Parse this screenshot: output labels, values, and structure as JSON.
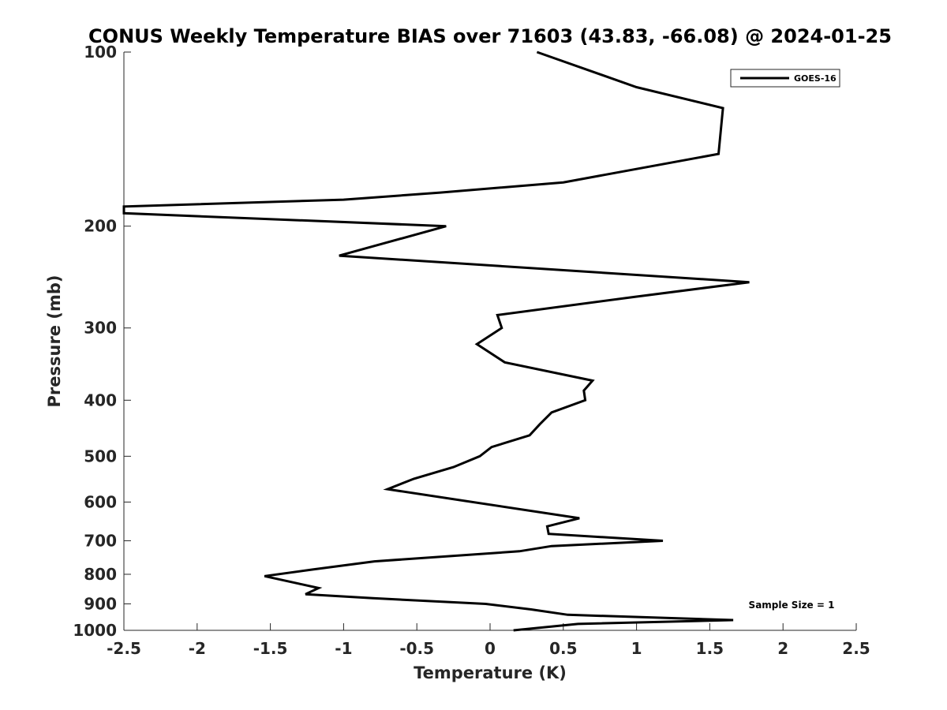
{
  "chart_data": {
    "type": "line",
    "title": "CONUS Weekly Temperature BIAS over 71603 (43.83, -66.08) @ 2024-01-25",
    "xlabel": "Temperature (K)",
    "ylabel": "Pressure (mb)",
    "xlim": [
      -2.5,
      2.5
    ],
    "ylim": [
      100,
      1000
    ],
    "y_scale": "log",
    "y_reversed": true,
    "x_ticks": [
      -2.5,
      -2,
      -1.5,
      -1,
      -0.5,
      0,
      0.5,
      1,
      1.5,
      2,
      2.5
    ],
    "x_tick_labels": [
      "-2.5",
      "-2",
      "-1.5",
      "-1",
      "-0.5",
      "0",
      "0.5",
      "1",
      "1.5",
      "2",
      "2.5"
    ],
    "y_ticks": [
      100,
      200,
      300,
      400,
      500,
      600,
      700,
      800,
      900,
      1000
    ],
    "y_tick_labels": [
      "100",
      "200",
      "300",
      "400",
      "500",
      "600",
      "700",
      "800",
      "900",
      "1000"
    ],
    "grid": false,
    "legend_position": "top-right",
    "series": [
      {
        "name": "GOES-16",
        "color": "#000000",
        "points": [
          {
            "x": 0.32,
            "y": 100
          },
          {
            "x": 1.0,
            "y": 115
          },
          {
            "x": 1.59,
            "y": 125
          },
          {
            "x": 1.56,
            "y": 150
          },
          {
            "x": 0.5,
            "y": 168
          },
          {
            "x": -0.34,
            "y": 175
          },
          {
            "x": -1.0,
            "y": 180
          },
          {
            "x": -2.5,
            "y": 185
          },
          {
            "x": -2.5,
            "y": 190
          },
          {
            "x": -0.3,
            "y": 200
          },
          {
            "x": -1.03,
            "y": 225
          },
          {
            "x": 1.77,
            "y": 250
          },
          {
            "x": 0.99,
            "y": 265
          },
          {
            "x": 0.05,
            "y": 285
          },
          {
            "x": 0.08,
            "y": 300
          },
          {
            "x": -0.09,
            "y": 320
          },
          {
            "x": 0.1,
            "y": 344
          },
          {
            "x": 0.7,
            "y": 370
          },
          {
            "x": 0.64,
            "y": 385
          },
          {
            "x": 0.65,
            "y": 400
          },
          {
            "x": 0.42,
            "y": 420
          },
          {
            "x": 0.34,
            "y": 440
          },
          {
            "x": 0.27,
            "y": 460
          },
          {
            "x": 0.01,
            "y": 482
          },
          {
            "x": -0.07,
            "y": 500
          },
          {
            "x": -0.25,
            "y": 522
          },
          {
            "x": -0.52,
            "y": 547
          },
          {
            "x": -0.7,
            "y": 570
          },
          {
            "x": 0.61,
            "y": 640
          },
          {
            "x": 0.39,
            "y": 661
          },
          {
            "x": 0.4,
            "y": 681
          },
          {
            "x": 1.18,
            "y": 700
          },
          {
            "x": 0.42,
            "y": 715
          },
          {
            "x": 0.2,
            "y": 730
          },
          {
            "x": -0.79,
            "y": 760
          },
          {
            "x": -1.21,
            "y": 785
          },
          {
            "x": -1.54,
            "y": 806
          },
          {
            "x": -1.31,
            "y": 830
          },
          {
            "x": -1.17,
            "y": 845
          },
          {
            "x": -1.26,
            "y": 866
          },
          {
            "x": -0.8,
            "y": 880
          },
          {
            "x": -0.03,
            "y": 900
          },
          {
            "x": 0.28,
            "y": 920
          },
          {
            "x": 0.53,
            "y": 940
          },
          {
            "x": 1.66,
            "y": 960
          },
          {
            "x": 0.6,
            "y": 975
          },
          {
            "x": 0.16,
            "y": 1000
          }
        ]
      }
    ],
    "annotations": [
      {
        "text": "Sample Size = 1"
      }
    ]
  }
}
